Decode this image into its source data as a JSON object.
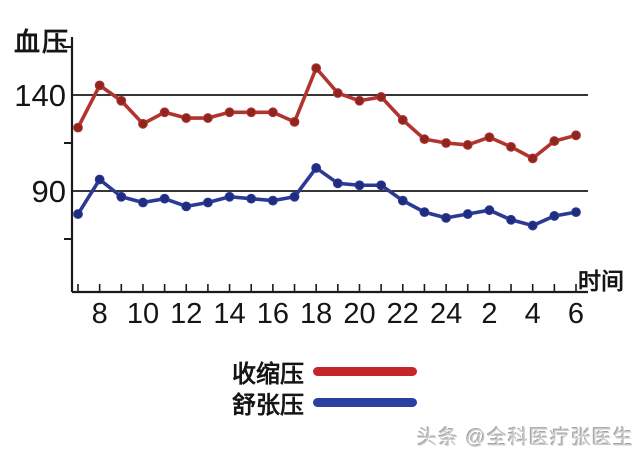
{
  "chart_data": {
    "type": "line",
    "y_axis_label": "血压",
    "x_axis_label": "时间",
    "hours": [
      "7",
      "8",
      "9",
      "10",
      "11",
      "12",
      "13",
      "14",
      "15",
      "16",
      "17",
      "18",
      "19",
      "20",
      "21",
      "22",
      "23",
      "24",
      "1",
      "2",
      "3",
      "4",
      "5",
      "6"
    ],
    "x_tick_labels_shown": [
      "8",
      "10",
      "12",
      "14",
      "16",
      "18",
      "20",
      "22",
      "24",
      "2",
      "4",
      "6"
    ],
    "gridline_values": [
      140,
      90
    ],
    "y_tick_labels": [
      "140",
      "90"
    ],
    "minor_y_tick_values": [
      165,
      115,
      65
    ],
    "ylim": [
      40,
      170
    ],
    "grid": "horizontal-only",
    "legend_position": "bottom-center",
    "axis_color": "#1a1a1a",
    "series": [
      {
        "name": "收缩压",
        "color": "#b23430",
        "marker_color": "#8e251f",
        "legend_color": "#c4252b",
        "values": [
          123,
          145,
          137,
          125,
          131,
          128,
          128,
          131,
          131,
          131,
          126,
          154,
          141,
          137,
          139,
          127,
          117,
          115,
          114,
          118,
          113,
          107,
          116,
          119
        ]
      },
      {
        "name": "舒张压",
        "color": "#2c3a96",
        "marker_color": "#1f2d7e",
        "legend_color": "#2b3f9e",
        "values": [
          78,
          96,
          87,
          84,
          86,
          82,
          84,
          87,
          86,
          85,
          87,
          102,
          94,
          93,
          93,
          85,
          79,
          76,
          78,
          80,
          75,
          72,
          77,
          79
        ]
      }
    ]
  },
  "watermark": "头条 @全科医疗张医生"
}
